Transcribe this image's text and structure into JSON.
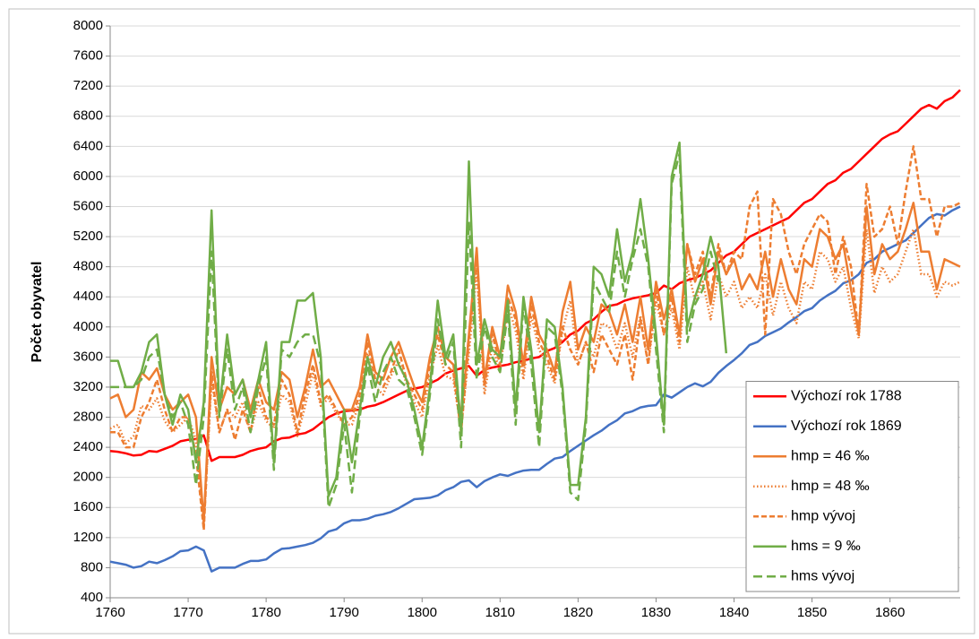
{
  "chart_data": {
    "type": "line",
    "y_label": "Počet obyvatel",
    "x": [
      1760,
      1761,
      1762,
      1763,
      1764,
      1765,
      1766,
      1767,
      1768,
      1769,
      1770,
      1771,
      1772,
      1773,
      1774,
      1775,
      1776,
      1777,
      1778,
      1779,
      1780,
      1781,
      1782,
      1783,
      1784,
      1785,
      1786,
      1787,
      1788,
      1789,
      1790,
      1791,
      1792,
      1793,
      1794,
      1795,
      1796,
      1797,
      1798,
      1799,
      1800,
      1801,
      1802,
      1803,
      1804,
      1805,
      1806,
      1807,
      1808,
      1809,
      1810,
      1811,
      1812,
      1813,
      1814,
      1815,
      1816,
      1817,
      1818,
      1819,
      1820,
      1821,
      1822,
      1823,
      1824,
      1825,
      1826,
      1827,
      1828,
      1829,
      1830,
      1831,
      1832,
      1833,
      1834,
      1835,
      1836,
      1837,
      1838,
      1839,
      1840,
      1841,
      1842,
      1843,
      1844,
      1845,
      1846,
      1847,
      1848,
      1849,
      1850,
      1851,
      1852,
      1853,
      1854,
      1855,
      1856,
      1857,
      1858,
      1859,
      1860,
      1861,
      1862,
      1863,
      1864,
      1865,
      1866,
      1867,
      1868,
      1869
    ],
    "xlim": [
      1760,
      1869
    ],
    "xticks": [
      1760,
      1770,
      1780,
      1790,
      1800,
      1810,
      1820,
      1830,
      1840,
      1850,
      1860
    ],
    "ylim": [
      400,
      8000
    ],
    "yticks": [
      400,
      800,
      1200,
      1600,
      2000,
      2400,
      2800,
      3200,
      3600,
      4000,
      4400,
      4800,
      5200,
      5600,
      6000,
      6400,
      6800,
      7200,
      7600,
      8000
    ],
    "grid": true,
    "legend": "bottom-right",
    "series": [
      {
        "name": "Výchozí rok 1788",
        "color": "#ff0000",
        "dash": "solid",
        "values": [
          2350,
          2340,
          2320,
          2290,
          2300,
          2350,
          2340,
          2380,
          2420,
          2480,
          2500,
          2510,
          2560,
          2220,
          2270,
          2270,
          2270,
          2300,
          2350,
          2380,
          2400,
          2480,
          2520,
          2530,
          2570,
          2590,
          2640,
          2720,
          2800,
          2850,
          2880,
          2890,
          2900,
          2940,
          2960,
          3000,
          3050,
          3100,
          3150,
          3180,
          3200,
          3250,
          3300,
          3380,
          3420,
          3450,
          3480,
          3350,
          3430,
          3460,
          3480,
          3500,
          3530,
          3550,
          3580,
          3600,
          3680,
          3720,
          3800,
          3900,
          3950,
          4050,
          4100,
          4200,
          4280,
          4300,
          4350,
          4380,
          4400,
          4420,
          4450,
          4550,
          4500,
          4580,
          4620,
          4650,
          4700,
          4750,
          4850,
          4950,
          5000,
          5100,
          5200,
          5250,
          5300,
          5350,
          5400,
          5450,
          5550,
          5650,
          5700,
          5800,
          5900,
          5950,
          6050,
          6100,
          6200,
          6300,
          6400,
          6500,
          6560,
          6600,
          6700,
          6800,
          6900,
          6950,
          6900,
          7000,
          7050,
          7150
        ]
      },
      {
        "name": "Výchozí rok 1869",
        "color": "#4472c4",
        "dash": "solid",
        "values": [
          880,
          860,
          840,
          800,
          820,
          880,
          860,
          900,
          950,
          1020,
          1030,
          1080,
          1030,
          750,
          800,
          800,
          800,
          850,
          890,
          890,
          910,
          990,
          1050,
          1060,
          1080,
          1100,
          1130,
          1190,
          1280,
          1310,
          1390,
          1430,
          1430,
          1450,
          1490,
          1510,
          1540,
          1590,
          1650,
          1710,
          1720,
          1730,
          1760,
          1830,
          1870,
          1940,
          1960,
          1870,
          1950,
          2000,
          2040,
          2020,
          2060,
          2090,
          2100,
          2100,
          2180,
          2250,
          2270,
          2350,
          2420,
          2490,
          2560,
          2620,
          2700,
          2760,
          2850,
          2880,
          2930,
          2950,
          2960,
          3100,
          3060,
          3130,
          3200,
          3250,
          3210,
          3270,
          3390,
          3480,
          3560,
          3650,
          3760,
          3800,
          3880,
          3930,
          3980,
          4060,
          4130,
          4210,
          4250,
          4350,
          4420,
          4480,
          4580,
          4620,
          4700,
          4850,
          4900,
          5000,
          5050,
          5100,
          5150,
          5250,
          5350,
          5450,
          5500,
          5480,
          5550,
          5600
        ]
      },
      {
        "name": "hmp = 46 ‰",
        "color": "#ed7d31",
        "dash": "solid",
        "values": [
          3050,
          3100,
          2800,
          2900,
          3400,
          3300,
          3450,
          3100,
          2900,
          3000,
          3100,
          2800,
          1400,
          3600,
          2900,
          3200,
          3100,
          3300,
          2900,
          3300,
          3000,
          2900,
          3400,
          3300,
          2800,
          3200,
          3700,
          3200,
          3300,
          3100,
          2900,
          2900,
          3200,
          3900,
          3400,
          3300,
          3600,
          3800,
          3500,
          3200,
          3000,
          3600,
          4000,
          3600,
          3500,
          2800,
          3900,
          5050,
          3300,
          4000,
          3600,
          4550,
          4200,
          3500,
          4400,
          3900,
          3700,
          3400,
          4200,
          4600,
          3700,
          4000,
          3800,
          4300,
          4200,
          3900,
          4300,
          3800,
          4400,
          3700,
          4600,
          4100,
          4500,
          3900,
          5100,
          4600,
          4900,
          4300,
          5000,
          4700,
          4900,
          4500,
          4700,
          4500,
          5000,
          4400,
          4900,
          4500,
          4300,
          4900,
          4800,
          5300,
          5200,
          4900,
          5100,
          4500,
          3900,
          5600,
          4700,
          5100,
          4900,
          5000,
          5300,
          5650,
          5000,
          5000,
          4500,
          4900,
          4850,
          4800
        ]
      },
      {
        "name": "hmp = 48 ‰",
        "color": "#ed7d31",
        "dash": "dotted",
        "values": [
          2650,
          2700,
          2450,
          2550,
          2950,
          2900,
          3050,
          2750,
          2600,
          2700,
          2800,
          2500,
          1350,
          3300,
          2600,
          2900,
          2800,
          3000,
          2600,
          3000,
          2750,
          2650,
          3100,
          3000,
          2550,
          2950,
          3400,
          2950,
          3050,
          2850,
          2700,
          2700,
          3000,
          3650,
          3200,
          3100,
          3350,
          3550,
          3250,
          3000,
          2800,
          3350,
          3750,
          3350,
          3300,
          2650,
          3650,
          4750,
          3100,
          3750,
          3400,
          4300,
          3950,
          3300,
          4150,
          3700,
          3500,
          3250,
          3950,
          4350,
          3500,
          3800,
          3600,
          4050,
          4000,
          3700,
          4050,
          3600,
          4150,
          3500,
          4350,
          3900,
          4250,
          3700,
          4800,
          4350,
          4600,
          4100,
          4700,
          4400,
          4600,
          4250,
          4400,
          4250,
          4700,
          4150,
          4600,
          4250,
          4050,
          4600,
          4500,
          5000,
          4900,
          4600,
          4800,
          4250,
          3850,
          5300,
          4450,
          4800,
          4600,
          4700,
          5000,
          5300,
          4700,
          4700,
          4400,
          4600,
          4550,
          4600
        ]
      },
      {
        "name": "hmp vývoj",
        "color": "#ed7d31",
        "dash": "dashed",
        "values": [
          2600,
          2600,
          2400,
          2400,
          2800,
          3000,
          3300,
          2900,
          2600,
          2800,
          2800,
          2300,
          1300,
          3400,
          2600,
          2900,
          2500,
          2900,
          2600,
          3200,
          2800,
          2700,
          3300,
          3100,
          2600,
          3100,
          3500,
          3000,
          3100,
          2900,
          2700,
          2800,
          3100,
          3800,
          3300,
          3200,
          3400,
          3700,
          3300,
          3100,
          2900,
          3500,
          3900,
          3500,
          3400,
          2600,
          3800,
          4900,
          3200,
          3900,
          3500,
          4400,
          4100,
          3400,
          4300,
          3800,
          3600,
          3300,
          4000,
          3700,
          3500,
          3800,
          3400,
          3900,
          3700,
          3500,
          3900,
          3300,
          4100,
          3500,
          4500,
          3900,
          4400,
          3800,
          5100,
          4700,
          5000,
          4400,
          5100,
          4700,
          5000,
          4900,
          5600,
          5800,
          3900,
          5700,
          5500,
          5000,
          4700,
          5100,
          5300,
          5500,
          5400,
          4700,
          5200,
          4800,
          3900,
          5900,
          5200,
          5300,
          5600,
          5100,
          5800,
          6400,
          5700,
          5700,
          5200,
          5600,
          5600,
          5650
        ]
      },
      {
        "name": "hms = 9 ‰",
        "color": "#70ad47",
        "dash": "solid",
        "values": [
          3550,
          3550,
          3200,
          3200,
          3400,
          3800,
          3900,
          3100,
          2700,
          3100,
          2900,
          2200,
          3000,
          5550,
          2900,
          3900,
          3100,
          3300,
          2800,
          3300,
          3800,
          2200,
          3800,
          3800,
          4350,
          4350,
          4450,
          3600,
          1750,
          2000,
          2900,
          2200,
          2900,
          3600,
          3200,
          3600,
          3800,
          3500,
          3300,
          2900,
          2400,
          3200,
          4350,
          3600,
          3900,
          2600,
          6200,
          3500,
          4100,
          3700,
          3600,
          4350,
          2900,
          4400,
          3700,
          2600,
          4100,
          4000,
          3200,
          1900,
          1900,
          2800,
          4800,
          4700,
          4400,
          5300,
          4600,
          5000,
          5700,
          4900,
          3900,
          2700,
          6000,
          6450,
          4000,
          4400,
          4700,
          5200,
          4800,
          3650,
          null,
          null,
          null,
          null,
          null,
          null,
          null,
          null,
          null,
          null,
          null,
          null,
          null,
          null,
          null,
          null,
          null,
          null,
          null,
          null,
          null,
          null,
          null,
          null,
          null,
          null,
          null,
          null,
          null,
          null
        ]
      },
      {
        "name": "hms vývoj",
        "color": "#70ad47",
        "dash": "longdash",
        "values": [
          3200,
          3200,
          3200,
          3200,
          3300,
          3600,
          3700,
          3100,
          2800,
          3000,
          2700,
          1900,
          2800,
          5000,
          2800,
          3700,
          2900,
          3200,
          2600,
          3200,
          3600,
          2100,
          3700,
          3600,
          3800,
          3900,
          3900,
          3500,
          1600,
          1900,
          2700,
          1800,
          2800,
          3500,
          3000,
          3400,
          3600,
          3300,
          3200,
          2800,
          2300,
          3100,
          4100,
          3500,
          3800,
          2400,
          5400,
          3300,
          4000,
          3600,
          3400,
          4200,
          2700,
          4300,
          3500,
          2400,
          4000,
          3900,
          3100,
          1800,
          1700,
          2700,
          4600,
          4400,
          4200,
          5000,
          4400,
          4900,
          5300,
          4800,
          3700,
          2600,
          5900,
          6300,
          3800,
          4300,
          4500,
          5000,
          4600,
          null,
          null,
          null,
          null,
          null,
          null,
          null,
          null,
          null,
          null,
          null,
          null,
          null,
          null,
          null,
          null,
          null,
          null,
          null,
          null,
          null,
          null,
          null,
          null,
          null,
          null,
          null,
          null,
          null,
          null,
          null
        ]
      }
    ]
  }
}
